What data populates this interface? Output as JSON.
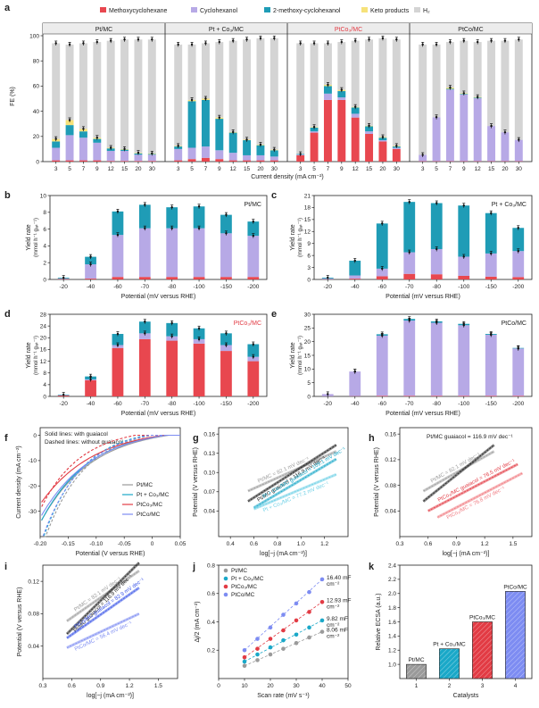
{
  "colors": {
    "methoxy": "#e8474f",
    "cyclohexanol": "#b7a9e6",
    "dimethoxy": "#1f9cb6",
    "keto": "#f6e27a",
    "h2": "#d4d4d4",
    "pt": "#9a9a9a",
    "ptco_solid": "#1aa8c8",
    "ptco3": "#e23b44",
    "ptco": "#7d8cf2",
    "black": "#222222"
  },
  "chart_data": [
    {
      "panel": "a",
      "type": "bar",
      "stacked": true,
      "legend": [
        "Methoxycyclohexane",
        "Cyclohexanol",
        "2-methoxy-cyclohexanol",
        "Keto products",
        "H₂"
      ],
      "ylabel": "FE (%)",
      "xlabel": "Current density (mA cm⁻²)",
      "ylim": [
        0,
        100
      ],
      "yticks": [
        "0",
        "20",
        "40",
        "60",
        "80",
        "100"
      ],
      "categories": [
        "3",
        "5",
        "7",
        "9",
        "12",
        "15",
        "20",
        "30"
      ],
      "groups": [
        {
          "title": "Pt/MC",
          "highlight": false,
          "methoxy": [
            1,
            1,
            1,
            1,
            0.5,
            0.5,
            0.5,
            0.5
          ],
          "cyclohexanol": [
            10,
            20,
            18,
            14,
            8,
            8,
            5,
            5
          ],
          "dimethoxy": [
            5,
            8,
            5,
            3,
            2,
            1,
            1,
            0.5
          ],
          "keto": [
            2,
            4,
            2,
            1,
            0.5,
            0.5,
            0.5,
            0.5
          ],
          "total": [
            94,
            93,
            94,
            95,
            96,
            97,
            97,
            97
          ]
        },
        {
          "title": "Pt + Co₃/MC",
          "highlight": false,
          "methoxy": [
            1,
            2,
            3,
            2,
            1,
            1,
            1,
            1
          ],
          "cyclohexanol": [
            9,
            9,
            9,
            7,
            6,
            4,
            4,
            3
          ],
          "dimethoxy": [
            2,
            37,
            37,
            25,
            16,
            12,
            8,
            5
          ],
          "keto": [
            0.5,
            1,
            1,
            1,
            0.5,
            0.5,
            0.5,
            0.5
          ],
          "total": [
            93,
            93,
            94,
            95,
            96,
            97,
            98,
            98
          ]
        },
        {
          "title": "PtCo₃/MC",
          "highlight": true,
          "methoxy": [
            5,
            23,
            49,
            49,
            35,
            22,
            16,
            10
          ],
          "cyclohexanol": [
            0.5,
            1,
            5,
            2,
            3,
            2,
            1,
            1
          ],
          "dimethoxy": [
            0.5,
            3,
            6,
            5,
            5,
            4,
            2,
            1
          ],
          "keto": [
            0,
            0.5,
            1,
            1,
            0.5,
            0.5,
            0.5,
            0.5
          ],
          "total": [
            94,
            94,
            94,
            95,
            96,
            97,
            98,
            97
          ]
        },
        {
          "title": "PtCo/MC",
          "highlight": false,
          "methoxy": [
            0.3,
            0.3,
            0.3,
            0.3,
            0.3,
            0.3,
            0.3,
            0.3
          ],
          "cyclohexanol": [
            5,
            35,
            57,
            53,
            50,
            28,
            23,
            17
          ],
          "dimethoxy": [
            0,
            0,
            0.5,
            0.5,
            0.5,
            0,
            0,
            0
          ],
          "keto": [
            0,
            0,
            1,
            0.5,
            0.5,
            0,
            0,
            0
          ],
          "total": [
            93,
            93,
            95,
            96,
            95,
            96,
            96,
            97
          ]
        }
      ]
    },
    {
      "panel": "b",
      "type": "bar",
      "stacked": true,
      "title": "Pt/MC",
      "highlight": false,
      "ylabel": "Yield rate",
      "xlabel": "Potential (mV versus RHE)",
      "ylim": [
        0,
        10
      ],
      "yticks": [
        "0",
        "2",
        "4",
        "6",
        "8",
        "10"
      ],
      "categories": [
        "-20",
        "-40",
        "-60",
        "-70",
        "-80",
        "-100",
        "-150",
        "-200"
      ],
      "methoxy": [
        0.05,
        0.1,
        0.3,
        0.3,
        0.3,
        0.3,
        0.3,
        0.3
      ],
      "cyclohexanol": [
        0.05,
        1.7,
        5.0,
        5.8,
        5.8,
        5.8,
        5.2,
        4.9
      ],
      "dimethoxy": [
        0.1,
        0.9,
        2.8,
        2.8,
        2.5,
        2.6,
        2.2,
        1.7
      ]
    },
    {
      "panel": "c",
      "type": "bar",
      "stacked": true,
      "title": "Pt + Co₃/MC",
      "highlight": false,
      "ylabel": "Yield rate",
      "xlabel": "Potential (mV versus RHE)",
      "ylim": [
        0,
        21
      ],
      "yticks": [
        "0",
        "3",
        "6",
        "9",
        "12",
        "15",
        "18",
        "21"
      ],
      "categories": [
        "-20",
        "-40",
        "-60",
        "-70",
        "-80",
        "-100",
        "-150",
        "-200"
      ],
      "methoxy": [
        0.05,
        0.2,
        0.8,
        1.4,
        1.3,
        0.9,
        0.7,
        0.6
      ],
      "cyclohexanol": [
        0.2,
        0.8,
        1.9,
        5.4,
        6.3,
        4.8,
        5.8,
        6.5
      ],
      "dimethoxy": [
        0.2,
        3.7,
        11.3,
        12.6,
        11.5,
        12.8,
        10.1,
        5.8
      ]
    },
    {
      "panel": "d",
      "type": "bar",
      "stacked": true,
      "title": "PtCo₃/MC",
      "highlight": true,
      "ylabel": "Yield rate",
      "xlabel": "Potential (mV versus RHE)",
      "ylim": [
        0,
        28
      ],
      "yticks": [
        "0",
        "4",
        "8",
        "12",
        "16",
        "20",
        "24",
        "28"
      ],
      "categories": [
        "-20",
        "-40",
        "-60",
        "-70",
        "-80",
        "-100",
        "-150",
        "-200"
      ],
      "methoxy": [
        0.3,
        5.5,
        16.5,
        19.5,
        19.0,
        18.0,
        15.5,
        12.0
      ],
      "cyclohexanol": [
        0.1,
        0.3,
        1.0,
        2.0,
        1.5,
        1.5,
        2.0,
        1.5
      ],
      "dimethoxy": [
        0.2,
        1.0,
        3.8,
        4.0,
        4.5,
        3.7,
        4.0,
        4.3
      ]
    },
    {
      "panel": "e",
      "type": "bar",
      "stacked": true,
      "title": "PtCo/MC",
      "highlight": false,
      "ylabel": "Yield rate",
      "xlabel": "Potential (mV versus RHE)",
      "ylim": [
        0,
        30
      ],
      "yticks": [
        "0",
        "5",
        "10",
        "15",
        "20",
        "25",
        "30"
      ],
      "categories": [
        "-20",
        "-40",
        "-60",
        "-70",
        "-80",
        "-100",
        "-150",
        "-200"
      ],
      "methoxy": [
        0.05,
        0.1,
        0.2,
        0.2,
        0.2,
        0.2,
        0.2,
        0.2
      ],
      "cyclohexanol": [
        0.8,
        9.0,
        22.0,
        27.5,
        26.7,
        25.8,
        22.3,
        17.3
      ],
      "dimethoxy": [
        0,
        0,
        0.5,
        0.6,
        0.5,
        0.5,
        0.3,
        0.2
      ]
    },
    {
      "panel": "f",
      "type": "line",
      "ylabel": "Current density (mA cm⁻²)",
      "xlabel": "Potential (V versus RHE)",
      "xlim": [
        -0.2,
        0.05
      ],
      "ylim": [
        -40,
        3
      ],
      "xticks": [
        "-0.20",
        "-0.15",
        "-0.10",
        "-0.05",
        "0",
        "0.05"
      ],
      "yticks": [
        "-30",
        "-20",
        "-10",
        "0"
      ],
      "notes": [
        "Solid lines: with guaiacol",
        "Dashed lines: without guaiacol"
      ],
      "series": [
        {
          "name": "Pt/MC",
          "color": "pt",
          "onset_solid": 0.03,
          "k_solid": 11.0,
          "onset_dashed": 0.0,
          "k_dashed": 14.0
        },
        {
          "name": "Pt + Co₃/MC",
          "color": "ptco_solid",
          "onset_solid": 0.02,
          "k_solid": 11.5,
          "onset_dashed": -0.01,
          "k_dashed": 14.5
        },
        {
          "name": "PtCo₃/MC",
          "color": "ptco3",
          "onset_solid": 0.02,
          "k_solid": 10.5,
          "onset_dashed": -0.03,
          "k_dashed": 14.0
        },
        {
          "name": "PtCo/MC",
          "color": "ptco",
          "onset_solid": 0.025,
          "k_solid": 11.0,
          "onset_dashed": -0.005,
          "k_dashed": 14.0
        }
      ]
    },
    {
      "panel": "g",
      "type": "line",
      "ylabel": "Potential (V versus RHE)",
      "xlabel": "log[−j (mA cm⁻²)]",
      "xlim": [
        0.3,
        1.4
      ],
      "ylim": [
        0.0,
        0.17
      ],
      "xticks": [
        "0.4",
        "0.6",
        "0.8",
        "1.0",
        "1.2"
      ],
      "yticks": [
        "0.04",
        "0.07",
        "0.10",
        "0.13",
        "0.16"
      ],
      "series": [
        {
          "name": "Pt/MC = 82.1 mV dec⁻¹",
          "color": "pt",
          "x": [
            0.55,
            1.3
          ],
          "y": [
            0.071,
            0.133
          ]
        },
        {
          "name": "Pt/MC guaiacol = 116.9 mV dec⁻¹",
          "color": "black",
          "x": [
            0.55,
            1.3
          ],
          "y": [
            0.055,
            0.143
          ]
        },
        {
          "name": "Pt + Co₃/MC guaiacol = 109.1 mV dec⁻¹",
          "color": "ptco_solid",
          "x": [
            0.6,
            1.3
          ],
          "y": [
            0.045,
            0.121
          ]
        },
        {
          "name": "Pt + Co₃/MC = 77.2 mV dec⁻¹",
          "color": "#6dd0e6",
          "x": [
            0.6,
            1.3
          ],
          "y": [
            0.043,
            0.097
          ]
        }
      ]
    },
    {
      "panel": "h",
      "type": "line",
      "ylabel": "Potential (V versus RHE)",
      "xlabel": "log[−j (mA cm⁻²)]",
      "xlim": [
        0.3,
        1.7
      ],
      "ylim": [
        0.0,
        0.17
      ],
      "xticks": [
        "0.3",
        "0.6",
        "0.9",
        "1.2",
        "1.5"
      ],
      "yticks": [
        "0.04",
        "0.08",
        "0.12",
        "0.16"
      ],
      "title_annotation": "Pt/MC guaiacol = 116.9 mV dec⁻¹",
      "series": [
        {
          "name": "Pt/MC = 82.1 mV dec⁻¹",
          "color": "pt",
          "x": [
            0.55,
            1.3
          ],
          "y": [
            0.071,
            0.133
          ]
        },
        {
          "name": "Pt/MC guaiacol",
          "color": "black",
          "x": [
            0.55,
            1.3
          ],
          "y": [
            0.055,
            0.143
          ]
        },
        {
          "name": "PtCo₃/MC guaiacol = 76.5 mV dec⁻¹",
          "color": "ptco3",
          "x": [
            0.6,
            1.55
          ],
          "y": [
            0.04,
            0.113
          ]
        },
        {
          "name": "PtCo₃/MC = 76.8 mV dec⁻¹",
          "color": "#f07a80",
          "x": [
            0.7,
            1.6
          ],
          "y": [
            0.03,
            0.099
          ]
        }
      ]
    },
    {
      "panel": "i",
      "type": "line",
      "ylabel": "Potential (V versus RHE)",
      "xlabel": "log[−j (mA cm⁻²)]",
      "xlim": [
        0.3,
        1.7
      ],
      "ylim": [
        0.0,
        0.14
      ],
      "xticks": [
        "0.3",
        "0.6",
        "0.9",
        "1.2",
        "1.5"
      ],
      "yticks": [
        "0.04",
        "0.08",
        "0.12"
      ],
      "series": [
        {
          "name": "Pt/MC = 82.1 mV dec⁻¹",
          "color": "pt",
          "x": [
            0.55,
            1.3
          ],
          "y": [
            0.071,
            0.133
          ]
        },
        {
          "name": "Pt/MC guaiacol = 116.9 mV dec⁻¹",
          "color": "black",
          "x": [
            0.55,
            1.3
          ],
          "y": [
            0.055,
            0.143
          ]
        },
        {
          "name": "PtCo/MC guaiacol = 82.9 mV dec⁻¹",
          "color": "#3a55e8",
          "x": [
            0.55,
            1.3
          ],
          "y": [
            0.05,
            0.112
          ]
        },
        {
          "name": "PtCo/MC = 56.4 mV dec⁻¹",
          "color": "ptco",
          "x": [
            0.55,
            1.3
          ],
          "y": [
            0.038,
            0.08
          ]
        }
      ]
    },
    {
      "panel": "j",
      "type": "scatter",
      "ylabel": "Δj/2 (mA cm⁻²)",
      "xlabel": "Scan rate (mV s⁻¹)",
      "xlim": [
        0,
        50
      ],
      "ylim": [
        0,
        0.8
      ],
      "xticks": [
        "0",
        "10",
        "20",
        "30",
        "40",
        "50"
      ],
      "yticks": [
        "0.2",
        "0.4",
        "0.6",
        "0.8"
      ],
      "x": [
        10,
        15,
        20,
        25,
        30,
        35,
        40
      ],
      "series": [
        {
          "name": "Pt/MC",
          "color": "pt",
          "slope_label": "8.06 mF cm⁻²",
          "y": [
            0.09,
            0.13,
            0.17,
            0.21,
            0.25,
            0.29,
            0.33
          ]
        },
        {
          "name": "Pt + Co₃/MC",
          "color": "ptco_solid",
          "slope_label": "9.82 mF cm⁻²",
          "y": [
            0.12,
            0.17,
            0.22,
            0.27,
            0.31,
            0.36,
            0.41
          ]
        },
        {
          "name": "PtCo₃/MC",
          "color": "ptco3",
          "slope_label": "12.93 mF cm⁻²",
          "y": [
            0.15,
            0.21,
            0.28,
            0.34,
            0.41,
            0.47,
            0.54
          ]
        },
        {
          "name": "PtCo/MC",
          "color": "ptco",
          "slope_label": "16.40 mF cm⁻²",
          "y": [
            0.2,
            0.28,
            0.36,
            0.45,
            0.53,
            0.61,
            0.7
          ]
        }
      ]
    },
    {
      "panel": "k",
      "type": "bar",
      "ylabel": "Relative ECSA (a.u.)",
      "xlabel": "Catalysts",
      "ylim": [
        0.8,
        2.4
      ],
      "yticks": [
        "1.0",
        "1.2",
        "1.4",
        "1.6",
        "1.8",
        "2.0",
        "2.2",
        "2.4"
      ],
      "categories": [
        "1",
        "2",
        "3",
        "4"
      ],
      "labels": [
        "Pt/MC",
        "Pt + Co₃/MC",
        "PtCo₃/MC",
        "PtCo/MC"
      ],
      "values": [
        1.0,
        1.22,
        1.6,
        2.03
      ],
      "colors": [
        "pt",
        "ptco_solid",
        "ptco3",
        "ptco"
      ]
    }
  ],
  "panel_labels": [
    "a",
    "b",
    "c",
    "d",
    "e",
    "f",
    "g",
    "h",
    "i",
    "j",
    "k"
  ],
  "yield_unit_label": "(mmol h⁻¹ gⱼₐₜ⁻¹)"
}
